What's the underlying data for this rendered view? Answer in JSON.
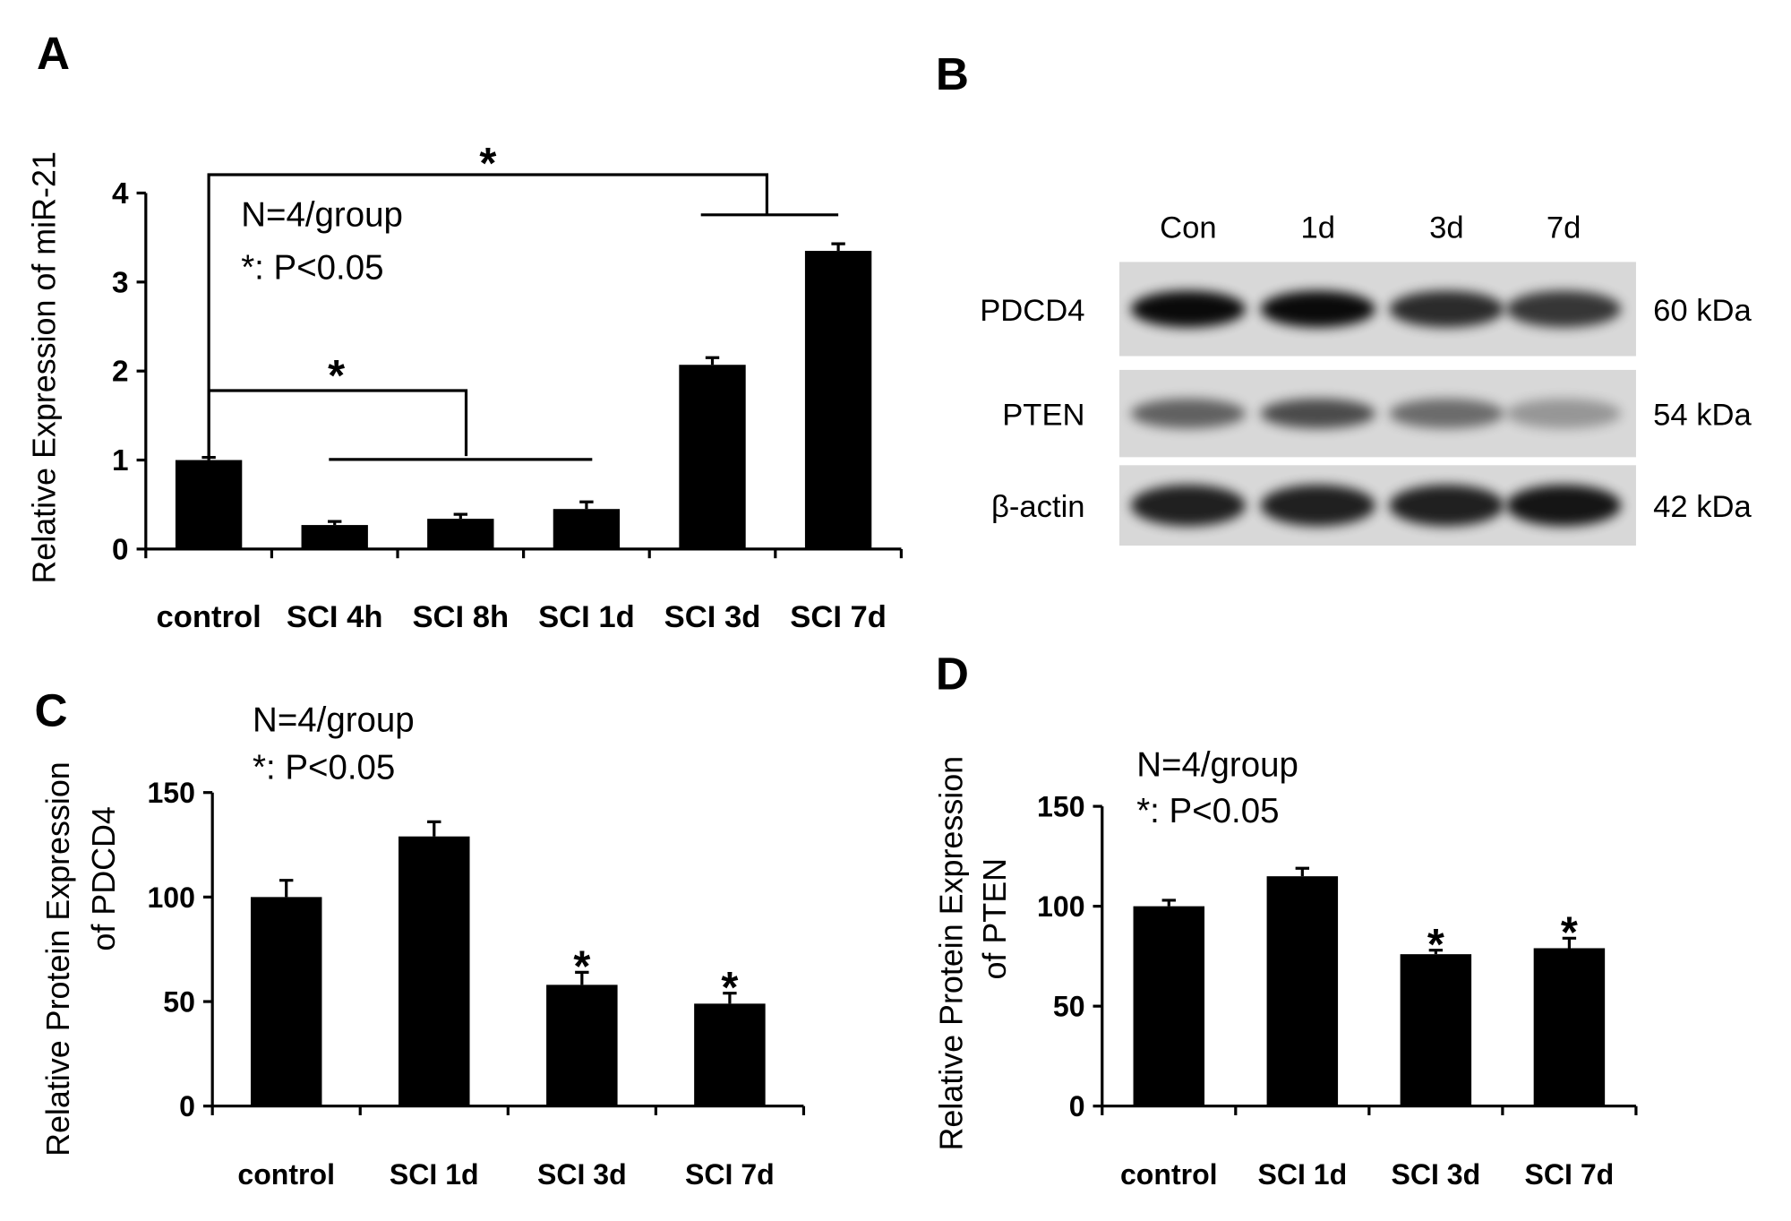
{
  "chart_data": [
    {
      "type": "bar",
      "panel": "A",
      "ylabel": "Relative  Expression of miR-21",
      "categories": [
        "control",
        "SCI 4h",
        "SCI 8h",
        "SCI 1d",
        "SCI 3d",
        "SCI 7d"
      ],
      "values": [
        1.0,
        0.27,
        0.34,
        0.45,
        2.07,
        3.35
      ],
      "errors": [
        0.03,
        0.04,
        0.05,
        0.08,
        0.08,
        0.08
      ],
      "color": "#000000",
      "ylim": [
        0,
        4
      ],
      "yticks": [
        0,
        1,
        2,
        3,
        4
      ],
      "annotations": [
        "N=4/group",
        "*: P<0.05"
      ],
      "brackets": [
        "*",
        "*"
      ]
    },
    {
      "type": "bar",
      "panel": "C",
      "ylabel": [
        "Relative  Protein Expression",
        "of PDCD4"
      ],
      "categories": [
        "control",
        "SCI 1d",
        "SCI 3d",
        "SCI 7d"
      ],
      "values": [
        100,
        129,
        58,
        49
      ],
      "errors": [
        8,
        7,
        6,
        5
      ],
      "significance": [
        null,
        null,
        "*",
        "*"
      ],
      "color": "#000000",
      "ylim": [
        0,
        150
      ],
      "yticks": [
        0,
        50,
        100,
        150
      ],
      "annotations": [
        "N=4/group",
        "*: P<0.05"
      ]
    },
    {
      "type": "bar",
      "panel": "D",
      "ylabel": [
        "Relative  Protein Expression",
        "of PTEN"
      ],
      "categories": [
        "control",
        "SCI 1d",
        "SCI 3d",
        "SCI 7d"
      ],
      "values": [
        100,
        115,
        76,
        79
      ],
      "errors": [
        3,
        4,
        2,
        5
      ],
      "significance": [
        null,
        null,
        "*",
        "*"
      ],
      "color": "#000000",
      "ylim": [
        0,
        150
      ],
      "yticks": [
        0,
        50,
        100,
        150
      ],
      "annotations": [
        "N=4/group",
        "*: P<0.05"
      ]
    }
  ],
  "blot": {
    "panel": "B",
    "lanes": [
      "Con",
      "1d",
      "3d",
      "7d"
    ],
    "rows": [
      {
        "label": "PDCD4",
        "size": "60 kDa"
      },
      {
        "label": "PTEN",
        "size": "54 kDa"
      },
      {
        "label": "β-actin",
        "size": "42 kDa"
      }
    ]
  }
}
